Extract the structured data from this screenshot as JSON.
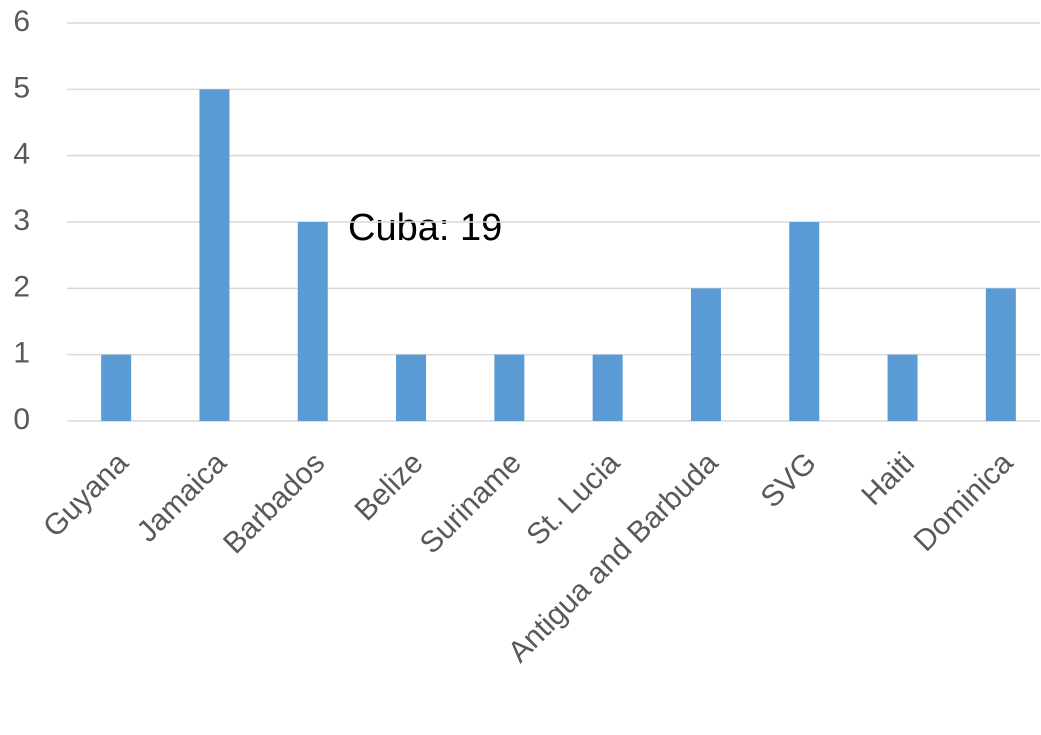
{
  "chart_data": {
    "type": "bar",
    "annotation": "Cuba: 19",
    "categories": [
      "Guyana",
      "Jamaica",
      "Barbados",
      "Belize",
      "Suriname",
      "St. Lucia",
      "Antigua and Barbuda",
      "SVG",
      "Haiti",
      "Dominica"
    ],
    "values": [
      1,
      5,
      3,
      1,
      1,
      1,
      2,
      3,
      1,
      2
    ],
    "color": "#5b9bd5",
    "ylim": [
      0,
      6
    ],
    "yticks": [
      0,
      1,
      2,
      3,
      4,
      5,
      6
    ],
    "grid": true
  }
}
